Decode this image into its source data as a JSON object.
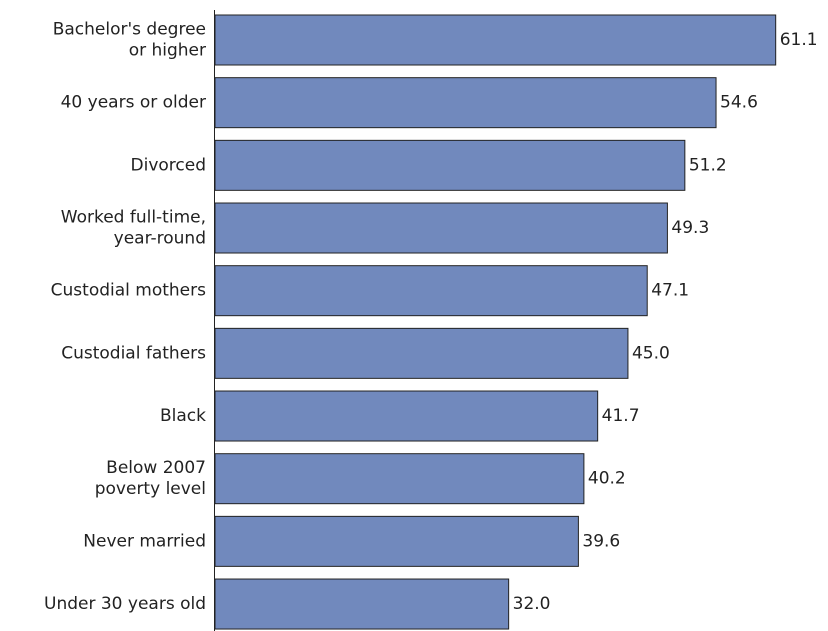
{
  "chart_data": {
    "type": "barh",
    "categories": [
      "Bachelor's degree\nor higher",
      "40 years or older",
      "Divorced",
      "Worked full-time,\nyear-round",
      "Custodial mothers",
      "Custodial fathers",
      "Black",
      "Below 2007\npoverty level",
      "Never married",
      "Under 30 years old"
    ],
    "values": [
      61.1,
      54.6,
      51.2,
      49.3,
      47.1,
      45.0,
      41.7,
      40.2,
      39.6,
      32.0
    ],
    "value_labels": [
      "61.1",
      "54.6",
      "51.2",
      "49.3",
      "47.1",
      "45.0",
      "41.7",
      "40.2",
      "39.6",
      "32.0"
    ],
    "color": "#7189bd",
    "xlim": [
      0,
      66.8
    ]
  }
}
